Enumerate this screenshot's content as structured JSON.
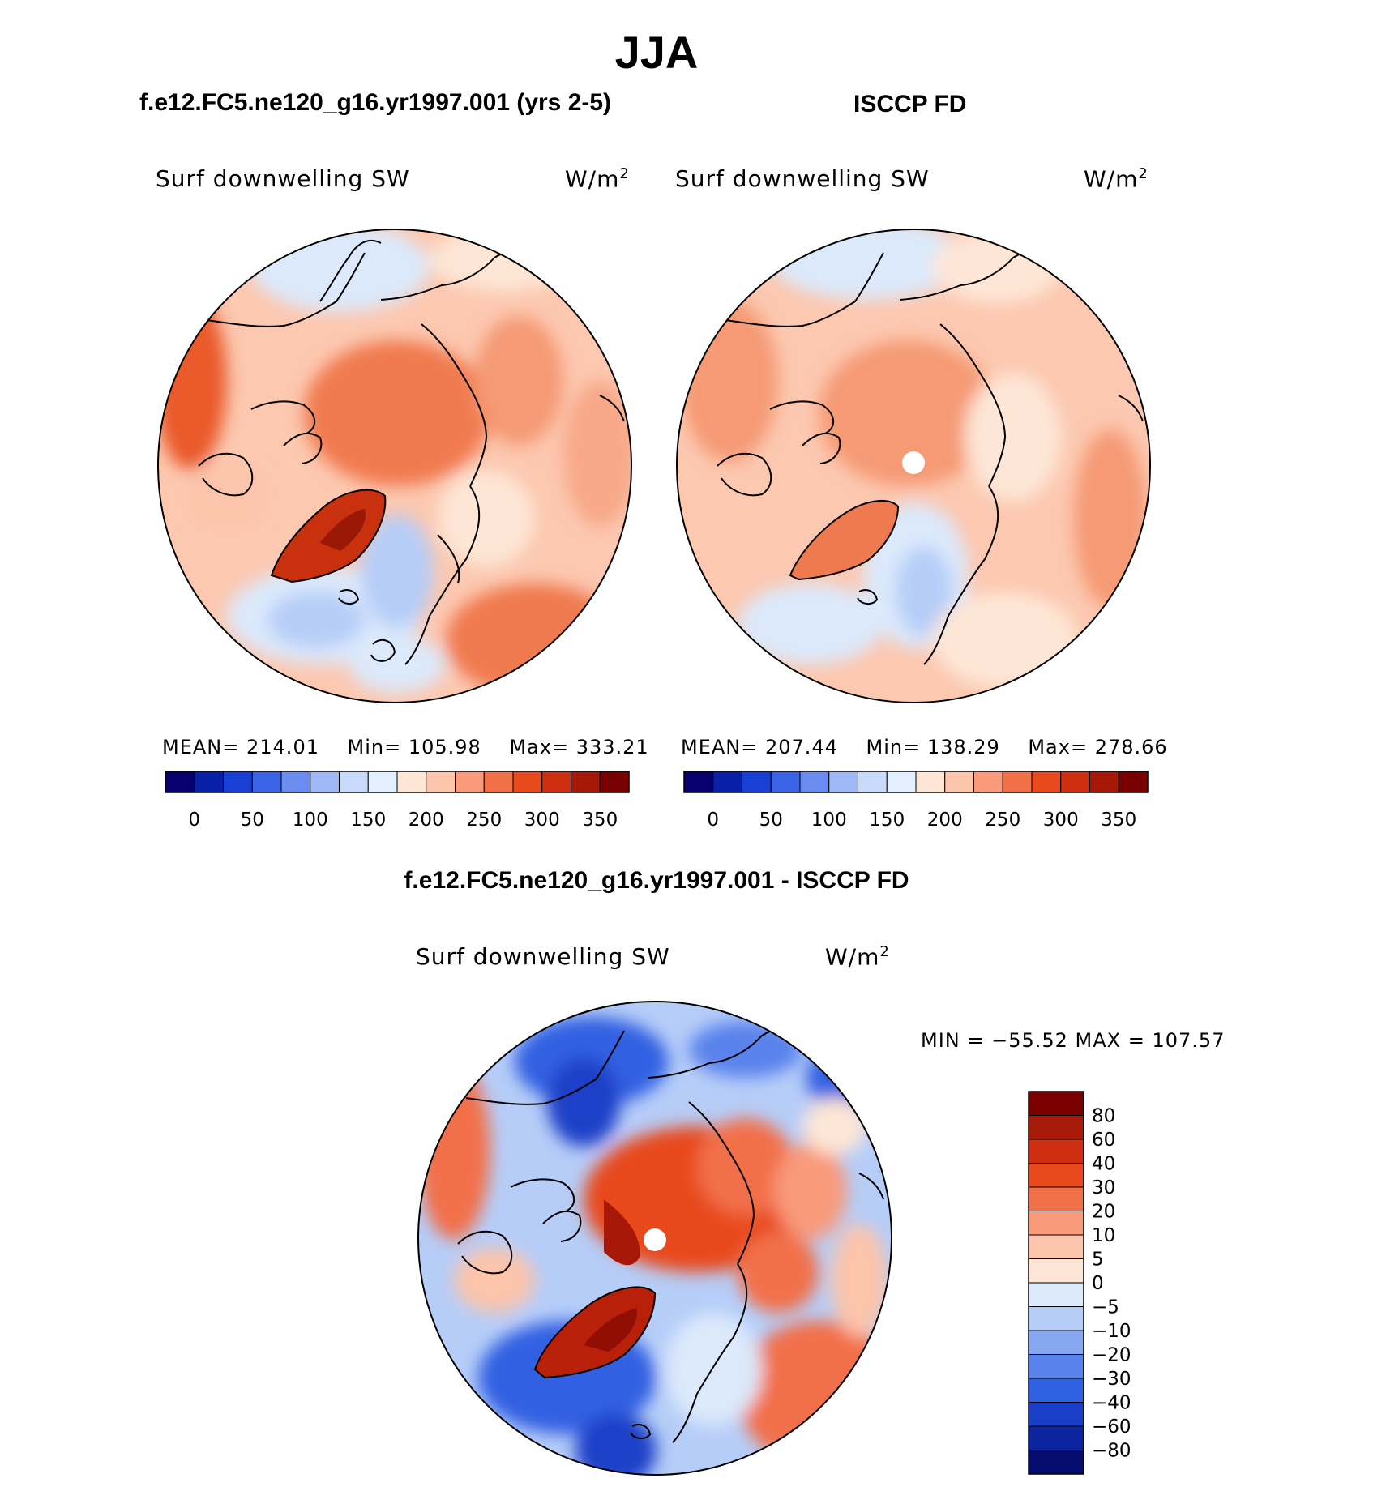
{
  "title": "JJA",
  "panels": [
    {
      "title": "f.e12.FC5.ne120_g16.yr1997.001 (yrs 2-5)",
      "variable": "Surf downwelling SW",
      "units": "W/m",
      "units_sup": "2",
      "stats": {
        "mean_label": "MEAN=",
        "mean": "214.01",
        "min_label": "Min=",
        "min": "105.98",
        "max_label": "Max=",
        "max": "333.21"
      }
    },
    {
      "title": "ISCCP FD",
      "variable": "Surf downwelling SW",
      "units": "W/m",
      "units_sup": "2",
      "stats": {
        "mean_label": "MEAN=",
        "mean": "207.44",
        "min_label": "Min=",
        "min": "138.29",
        "max_label": "Max=",
        "max": "278.66"
      }
    }
  ],
  "colorbar_top": {
    "ticks": [
      "0",
      "50",
      "100",
      "150",
      "200",
      "250",
      "300",
      "350"
    ],
    "colors": [
      "#08006e",
      "#0a1fa8",
      "#1a3fd6",
      "#3a63e8",
      "#6a8cf0",
      "#9eb8f6",
      "#c8dafa",
      "#e4efff",
      "#fde6d6",
      "#fcc4aa",
      "#f99a7a",
      "#f27048",
      "#e84a1e",
      "#d02e10",
      "#a81808",
      "#780000"
    ]
  },
  "diff_panel": {
    "title": "f.e12.FC5.ne120_g16.yr1997.001 - ISCCP FD",
    "variable": "Surf downwelling SW",
    "units": "W/m",
    "units_sup": "2",
    "minmax": "MIN = −55.52 MAX = 107.57",
    "colorbar": {
      "labels": [
        "80",
        "60",
        "40",
        "30",
        "20",
        "10",
        "5",
        "0",
        "−5",
        "−10",
        "−20",
        "−30",
        "−40",
        "−60",
        "−80"
      ],
      "colors": [
        "#7a0000",
        "#a81a08",
        "#d02e10",
        "#e84a1e",
        "#f27048",
        "#f99a7a",
        "#fcc4aa",
        "#fde6d6",
        "#dbe9fb",
        "#b6cdf8",
        "#86a8f2",
        "#5a82ec",
        "#3060e2",
        "#1a3fc8",
        "#0d24a0",
        "#050c70"
      ]
    }
  }
}
